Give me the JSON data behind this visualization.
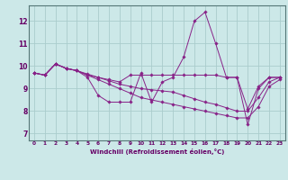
{
  "xlabel": "Windchill (Refroidissement éolien,°C)",
  "background_color": "#cce8e8",
  "line_color": "#882288",
  "grid_color": "#aacccc",
  "yticks": [
    7,
    8,
    9,
    10,
    11,
    12
  ],
  "xticks": [
    0,
    1,
    2,
    3,
    4,
    5,
    6,
    7,
    8,
    9,
    10,
    11,
    12,
    13,
    14,
    15,
    16,
    17,
    18,
    19,
    20,
    21,
    22,
    23
  ],
  "xlim": [
    -0.5,
    23.5
  ],
  "ylim": [
    6.7,
    12.7
  ],
  "series": [
    [
      9.7,
      9.6,
      10.1,
      9.9,
      9.8,
      9.5,
      8.7,
      8.4,
      8.4,
      8.4,
      9.7,
      8.4,
      9.3,
      9.5,
      10.4,
      12.0,
      12.4,
      11.0,
      9.5,
      9.5,
      7.4,
      9.0,
      9.5,
      9.5
    ],
    [
      9.7,
      9.6,
      10.1,
      9.9,
      9.8,
      9.65,
      9.5,
      9.4,
      9.3,
      9.6,
      9.6,
      9.6,
      9.6,
      9.6,
      9.6,
      9.6,
      9.6,
      9.6,
      9.5,
      9.5,
      8.1,
      9.1,
      9.5,
      9.5
    ],
    [
      9.7,
      9.6,
      10.1,
      9.9,
      9.8,
      9.6,
      9.5,
      9.35,
      9.2,
      9.1,
      9.0,
      8.95,
      8.9,
      8.85,
      8.7,
      8.55,
      8.4,
      8.3,
      8.15,
      8.0,
      8.0,
      8.6,
      9.3,
      9.5
    ],
    [
      9.7,
      9.6,
      10.1,
      9.9,
      9.8,
      9.6,
      9.4,
      9.2,
      9.0,
      8.8,
      8.6,
      8.5,
      8.4,
      8.3,
      8.2,
      8.1,
      8.0,
      7.9,
      7.8,
      7.7,
      7.7,
      8.2,
      9.1,
      9.4
    ]
  ],
  "marker_indices": [
    [
      0,
      2,
      4,
      6,
      9,
      11,
      14,
      15,
      16,
      17,
      18,
      20,
      22,
      23
    ],
    [
      0,
      2,
      4,
      9,
      14,
      18,
      20,
      22,
      23
    ],
    [
      0,
      2,
      4,
      6,
      9,
      14,
      18,
      20,
      22,
      23
    ],
    [
      0,
      2,
      5,
      9,
      14,
      18,
      20,
      23
    ]
  ]
}
